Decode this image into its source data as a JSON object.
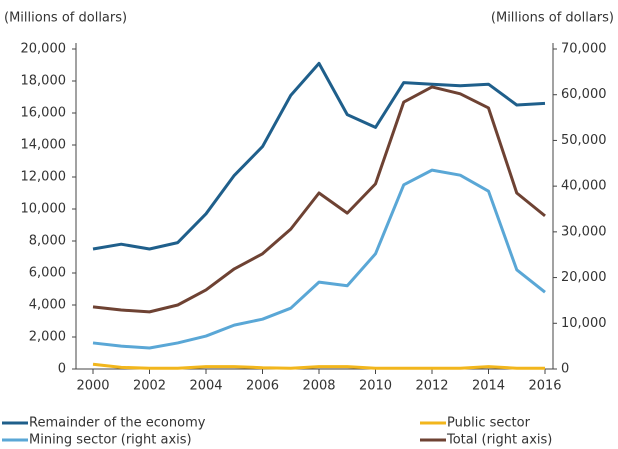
{
  "chart_data": {
    "type": "line",
    "ylabel": "(Millions of dollars)",
    "y2label": "(Millions of dollars)",
    "x": [
      2000,
      2001,
      2002,
      2003,
      2004,
      2005,
      2006,
      2007,
      2008,
      2009,
      2010,
      2011,
      2012,
      2013,
      2014,
      2015,
      2016
    ],
    "xlim": [
      2000,
      2016
    ],
    "xticks": [
      2000,
      2002,
      2004,
      2006,
      2008,
      2010,
      2012,
      2014,
      2016
    ],
    "ylim": [
      0,
      20000
    ],
    "yticks": [
      0,
      {
        "value": 2000,
        "label": "2,000"
      },
      {
        "value": 4000,
        "label": "4,000"
      },
      {
        "value": 6000,
        "label": "6,000"
      },
      {
        "value": 8000,
        "label": "8,000"
      },
      {
        "value": 10000,
        "label": "10,000"
      },
      {
        "value": 12000,
        "label": "12,000"
      },
      {
        "value": 14000,
        "label": "14,000"
      },
      {
        "value": 16000,
        "label": "16,000"
      },
      {
        "value": 18000,
        "label": "18,000"
      },
      {
        "value": 20000,
        "label": "20,000"
      }
    ],
    "y2lim": [
      0,
      70000
    ],
    "y2ticks": [
      0,
      {
        "value": 10000,
        "label": "10,000"
      },
      {
        "value": 20000,
        "label": "20,000"
      },
      {
        "value": 30000,
        "label": "30,000"
      },
      {
        "value": 40000,
        "label": "40,000"
      },
      {
        "value": 50000,
        "label": "50,000"
      },
      {
        "value": 60000,
        "label": "60,000"
      },
      {
        "value": 70000,
        "label": "70,000"
      }
    ],
    "series": [
      {
        "name": "Remainder of the economy",
        "color": "#1f5f8b",
        "axis": "y",
        "values": [
          7500,
          7800,
          7500,
          7900,
          9700,
          12100,
          13900,
          17100,
          19100,
          15900,
          15100,
          17900,
          17800,
          17700,
          17800,
          16500,
          16600
        ]
      },
      {
        "name": "Public sector",
        "color": "#f2b61c",
        "axis": "y",
        "values": [
          300,
          100,
          50,
          50,
          150,
          150,
          80,
          50,
          150,
          150,
          50,
          50,
          50,
          50,
          150,
          50,
          50
        ]
      },
      {
        "name": "Mining sector (right axis)",
        "color": "#5aa7d6",
        "axis": "y2",
        "values": [
          5700,
          5000,
          4600,
          5700,
          7200,
          9600,
          10900,
          13300,
          19000,
          18200,
          25200,
          40300,
          43500,
          42400,
          38900,
          21700,
          16800
        ]
      },
      {
        "name": "Total (right axis)",
        "color": "#6e4233",
        "axis": "y2",
        "values": [
          13600,
          12900,
          12500,
          14000,
          17300,
          21900,
          25200,
          30600,
          38500,
          34100,
          40500,
          58400,
          61700,
          60200,
          57100,
          38500,
          33500
        ]
      }
    ]
  }
}
